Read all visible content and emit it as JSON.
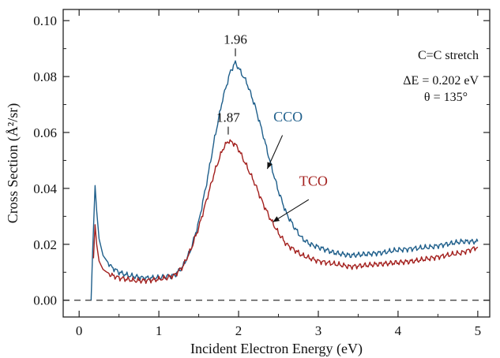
{
  "chart_data": {
    "type": "line",
    "xlabel": "Incident Electron Energy (eV)",
    "ylabel": "Cross Section (Å²/sr)",
    "xlim": [
      -0.2,
      5.15
    ],
    "ylim": [
      -0.006,
      0.104
    ],
    "xticks": [
      0,
      1,
      2,
      3,
      4,
      5
    ],
    "xtick_labels": [
      "0",
      "1",
      "2",
      "3",
      "4",
      "5"
    ],
    "yticks": [
      0.0,
      0.02,
      0.04,
      0.06,
      0.08,
      0.1
    ],
    "ytick_labels": [
      "0.00",
      "0.02",
      "0.04",
      "0.06",
      "0.08",
      "0.10"
    ],
    "baseline": 0.0,
    "annotations": {
      "mode": "C=C stretch",
      "delta_e": "ΔE = 0.202 eV",
      "theta": "θ = 135°"
    },
    "series": [
      {
        "name": "CCO",
        "color": "#1f5f8b",
        "peak_label": "1.96",
        "peak_x": 1.96,
        "x": [
          0.15,
          0.17,
          0.2,
          0.22,
          0.25,
          0.3,
          0.4,
          0.5,
          0.6,
          0.7,
          0.8,
          0.9,
          1.0,
          1.1,
          1.2,
          1.3,
          1.4,
          1.5,
          1.6,
          1.7,
          1.8,
          1.9,
          1.96,
          2.0,
          2.1,
          2.2,
          2.3,
          2.4,
          2.5,
          2.6,
          2.7,
          2.8,
          2.9,
          3.0,
          3.2,
          3.4,
          3.6,
          3.8,
          4.0,
          4.2,
          4.4,
          4.6,
          4.8,
          5.0
        ],
        "y": [
          0.0,
          0.018,
          0.041,
          0.032,
          0.022,
          0.016,
          0.012,
          0.01,
          0.009,
          0.0085,
          0.008,
          0.008,
          0.008,
          0.0085,
          0.009,
          0.012,
          0.018,
          0.028,
          0.042,
          0.058,
          0.072,
          0.082,
          0.085,
          0.083,
          0.078,
          0.07,
          0.06,
          0.049,
          0.039,
          0.031,
          0.026,
          0.022,
          0.02,
          0.019,
          0.017,
          0.016,
          0.0165,
          0.017,
          0.018,
          0.0185,
          0.019,
          0.02,
          0.021,
          0.021
        ]
      },
      {
        "name": "TCO",
        "color": "#a3201e",
        "peak_label": "1.87",
        "peak_x": 1.87,
        "x": [
          0.18,
          0.2,
          0.22,
          0.25,
          0.3,
          0.4,
          0.5,
          0.6,
          0.7,
          0.8,
          0.9,
          1.0,
          1.1,
          1.2,
          1.3,
          1.4,
          1.5,
          1.6,
          1.7,
          1.8,
          1.87,
          1.95,
          2.0,
          2.1,
          2.2,
          2.3,
          2.4,
          2.5,
          2.6,
          2.7,
          2.8,
          2.9,
          3.0,
          3.2,
          3.4,
          3.6,
          3.8,
          4.0,
          4.2,
          4.4,
          4.6,
          4.8,
          5.0
        ],
        "y": [
          0.015,
          0.027,
          0.02,
          0.014,
          0.011,
          0.009,
          0.008,
          0.0075,
          0.007,
          0.007,
          0.0072,
          0.0075,
          0.008,
          0.009,
          0.012,
          0.018,
          0.026,
          0.036,
          0.046,
          0.054,
          0.057,
          0.056,
          0.054,
          0.048,
          0.042,
          0.035,
          0.029,
          0.024,
          0.02,
          0.018,
          0.016,
          0.015,
          0.014,
          0.013,
          0.012,
          0.0125,
          0.013,
          0.0135,
          0.014,
          0.015,
          0.016,
          0.017,
          0.019
        ]
      }
    ]
  }
}
